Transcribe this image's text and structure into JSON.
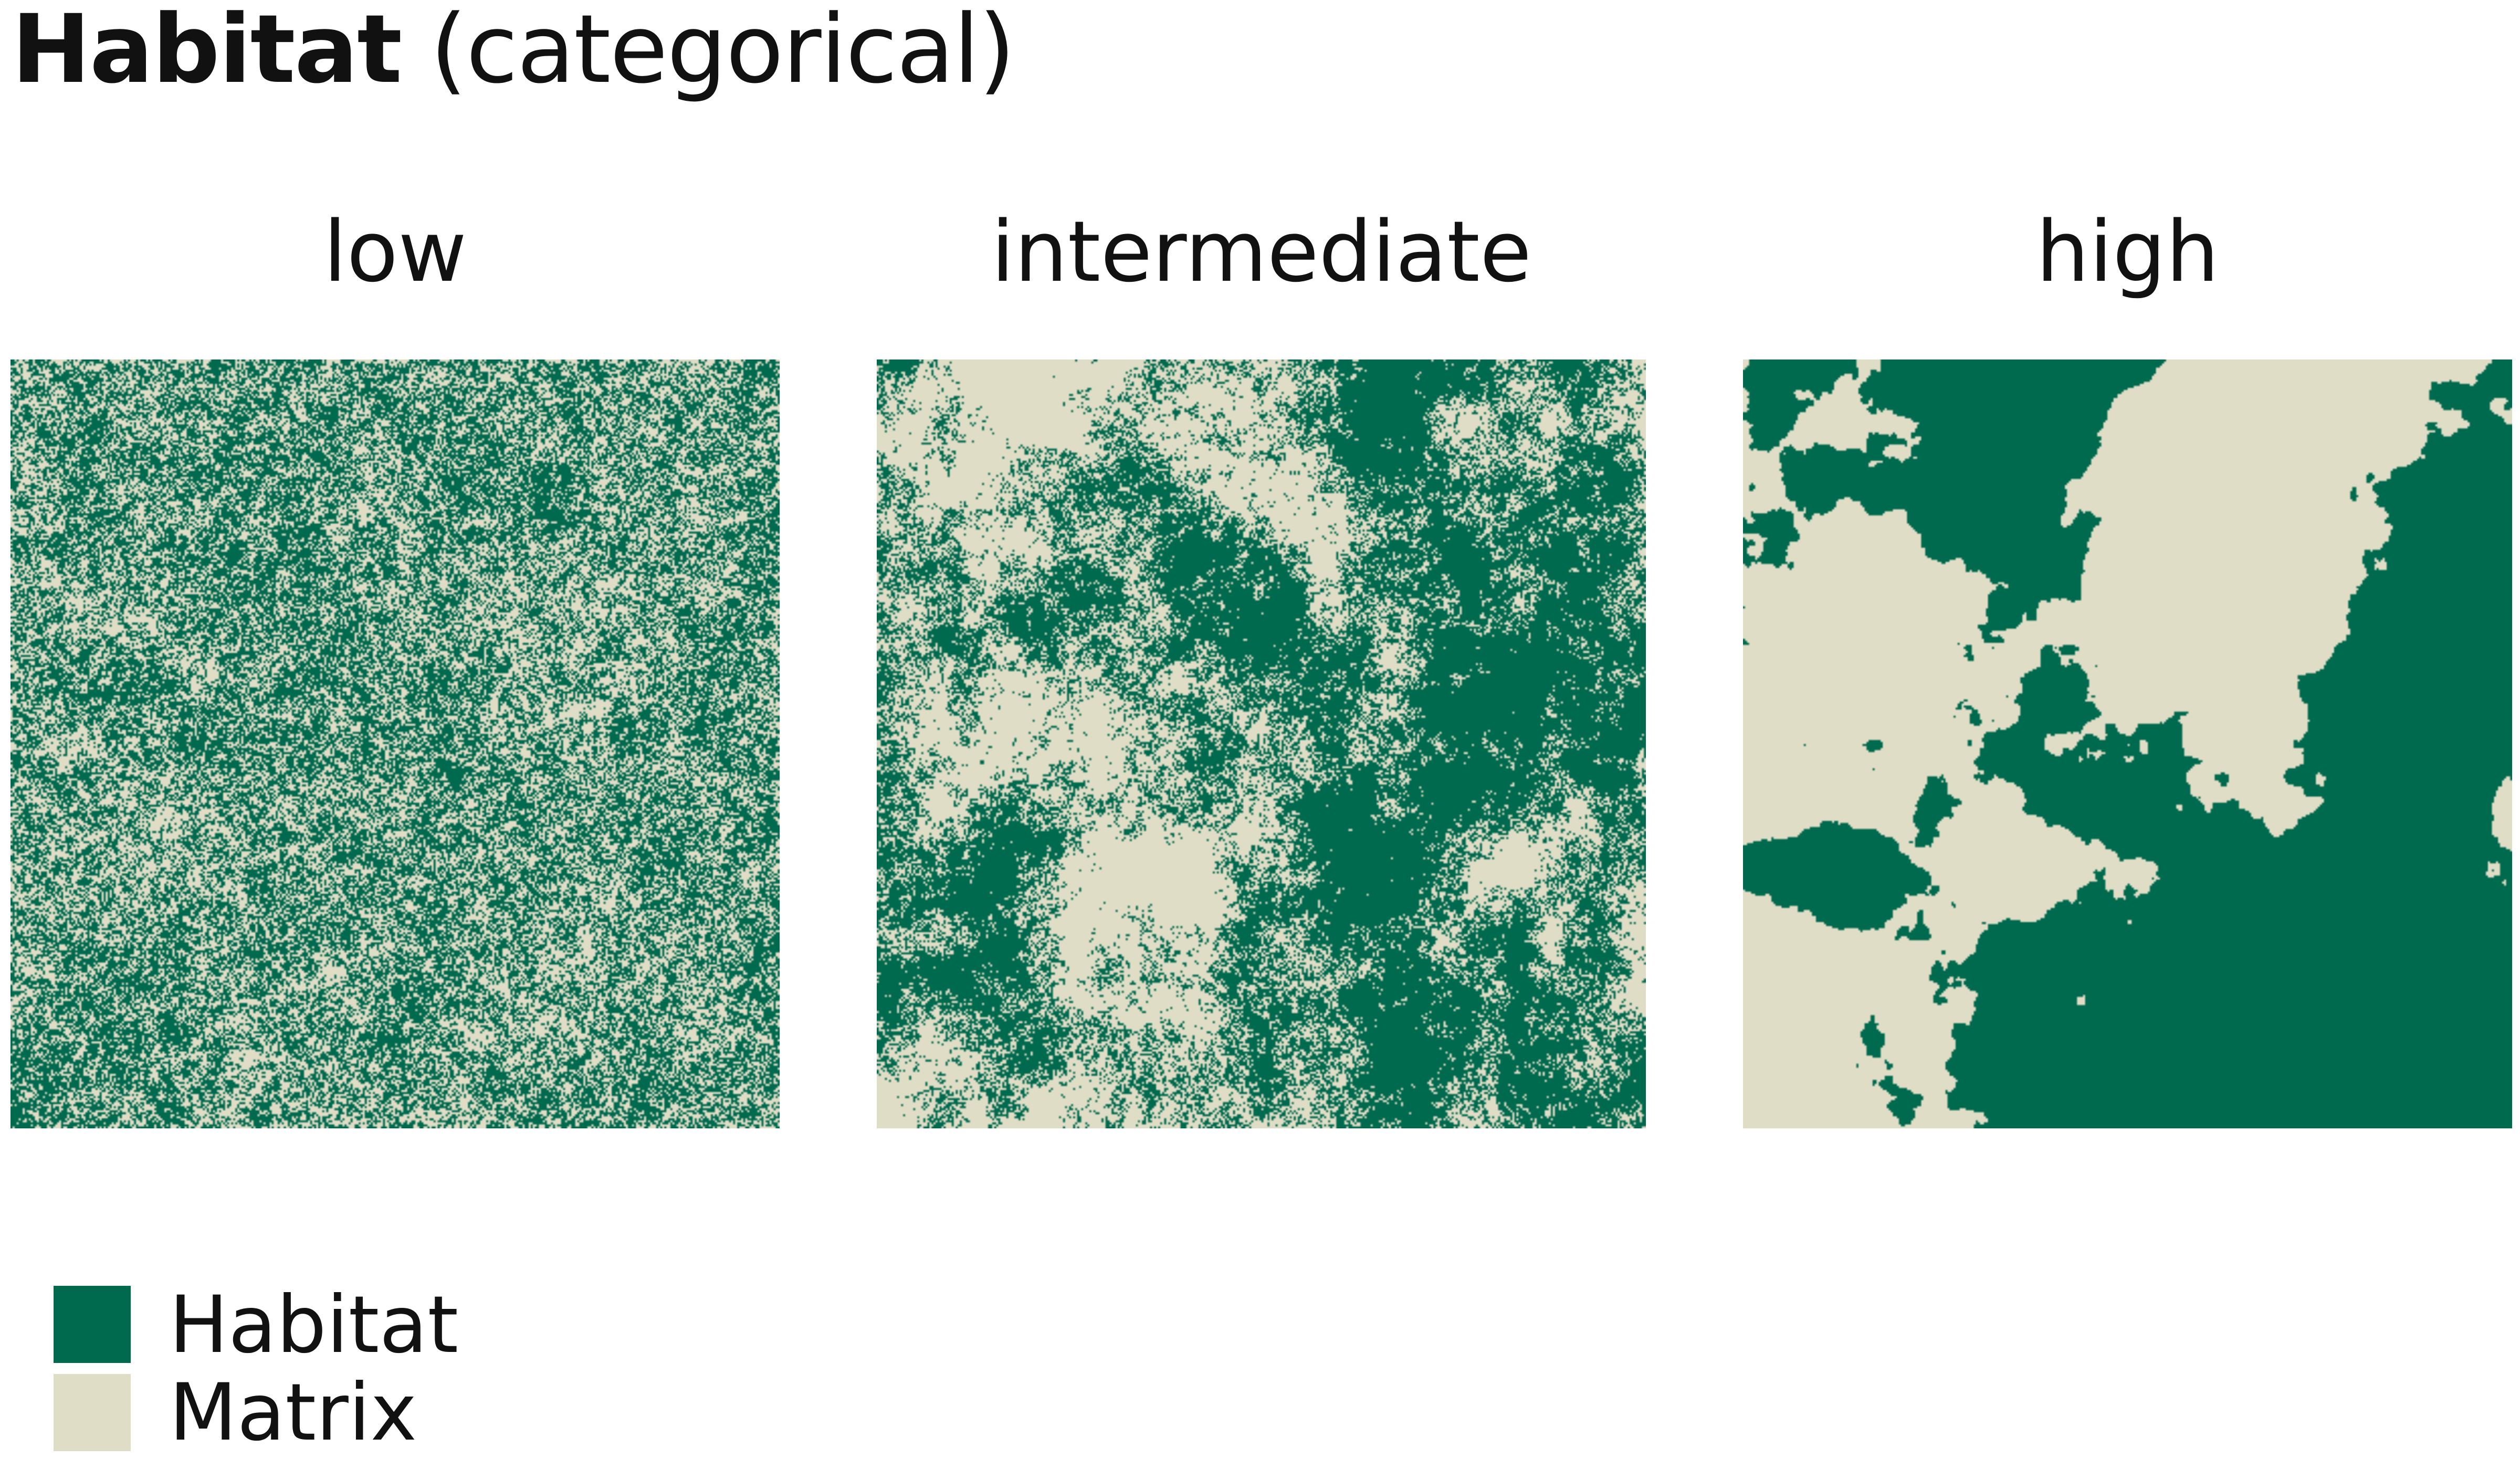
{
  "title": {
    "bold": "Habitat",
    "normal": " (categorical)"
  },
  "panels": [
    {
      "label": "low",
      "autocorrelation": "low"
    },
    {
      "label": "intermediate",
      "autocorrelation": "intermediate"
    },
    {
      "label": "high",
      "autocorrelation": "high"
    }
  ],
  "legend": {
    "items": [
      {
        "label": "Habitat",
        "color": "#006a4e"
      },
      {
        "label": "Matrix",
        "color": "#e0ddc6"
      }
    ]
  }
}
